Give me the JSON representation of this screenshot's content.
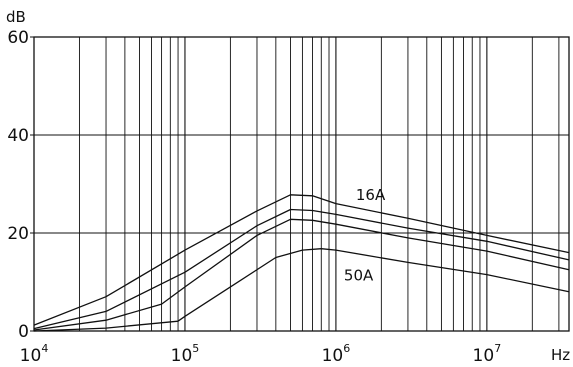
{
  "chart_data": {
    "type": "line",
    "x_scale": "log",
    "xlim": [
      10000,
      35000000
    ],
    "ylim": [
      0,
      60
    ],
    "grid": true,
    "y_unit": "dB",
    "x_unit": "Hz",
    "y_ticks": [
      {
        "value": 0,
        "label": "0"
      },
      {
        "value": 20,
        "label": "20"
      },
      {
        "value": 40,
        "label": "40"
      },
      {
        "value": 60,
        "label": "60"
      }
    ],
    "x_ticks": [
      {
        "value": 10000,
        "base": "10",
        "exp": "4"
      },
      {
        "value": 100000,
        "base": "10",
        "exp": "5"
      },
      {
        "value": 1000000,
        "base": "10",
        "exp": "6"
      },
      {
        "value": 10000000,
        "base": "10",
        "exp": "7"
      }
    ],
    "series": [
      {
        "name": "16A",
        "label_at": [
          1200000,
          28
        ],
        "points": [
          [
            10000,
            1.2
          ],
          [
            30000,
            7
          ],
          [
            100000,
            16.5
          ],
          [
            300000,
            24.5
          ],
          [
            500000,
            27.8
          ],
          [
            700000,
            27.6
          ],
          [
            1000000,
            26
          ],
          [
            3000000,
            23
          ],
          [
            10000000,
            19.5
          ],
          [
            35000000,
            16
          ]
        ]
      },
      {
        "name": "",
        "points": [
          [
            10000,
            0.5
          ],
          [
            30000,
            4
          ],
          [
            100000,
            12
          ],
          [
            300000,
            21.5
          ],
          [
            500000,
            24.8
          ],
          [
            700000,
            24.6
          ],
          [
            1000000,
            23.8
          ],
          [
            3000000,
            21
          ],
          [
            10000000,
            18.3
          ],
          [
            35000000,
            14.5
          ]
        ]
      },
      {
        "name": "",
        "points": [
          [
            10000,
            0.2
          ],
          [
            30000,
            2.2
          ],
          [
            70000,
            5.5
          ],
          [
            100000,
            9
          ],
          [
            300000,
            19.5
          ],
          [
            500000,
            22.8
          ],
          [
            700000,
            22.6
          ],
          [
            1000000,
            21.8
          ],
          [
            3000000,
            19
          ],
          [
            10000000,
            16.3
          ],
          [
            35000000,
            12.5
          ]
        ]
      },
      {
        "name": "50A",
        "label_at": [
          1000000,
          11.5
        ],
        "points": [
          [
            10000,
            0
          ],
          [
            30000,
            0.6
          ],
          [
            90000,
            2
          ],
          [
            100000,
            3
          ],
          [
            200000,
            9
          ],
          [
            400000,
            15
          ],
          [
            600000,
            16.5
          ],
          [
            800000,
            16.8
          ],
          [
            1000000,
            16.5
          ],
          [
            3000000,
            14
          ],
          [
            10000000,
            11.5
          ],
          [
            35000000,
            8
          ]
        ]
      }
    ]
  }
}
